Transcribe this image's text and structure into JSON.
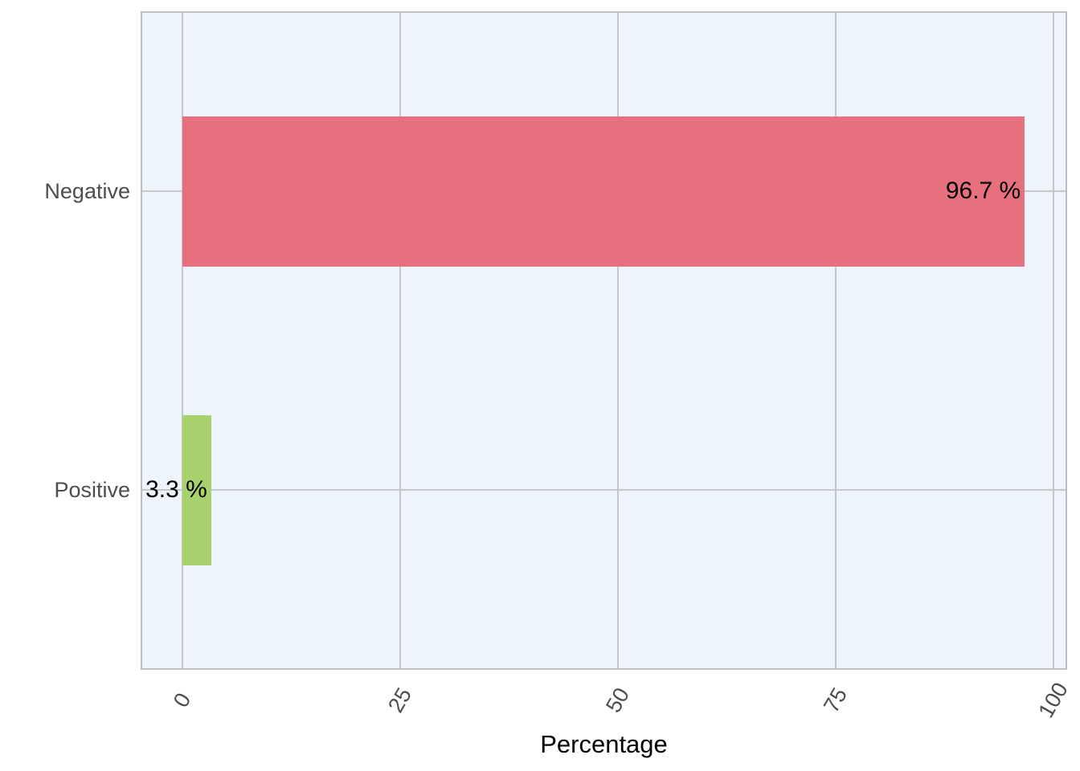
{
  "chart_data": {
    "type": "bar",
    "orientation": "horizontal",
    "title": "",
    "xlabel": "Percentage",
    "ylabel": "",
    "categories": [
      "Negative",
      "Positive"
    ],
    "values": [
      96.7,
      3.3
    ],
    "bar_labels": [
      "96.7 %",
      "3.3 %"
    ],
    "bar_colors": [
      "#E7707E",
      "#A8D26E"
    ],
    "x_ticks": [
      0,
      25,
      50,
      75,
      100
    ],
    "x_tick_labels": [
      "0",
      "25",
      "50",
      "75",
      "100"
    ],
    "xlim": [
      0,
      100
    ],
    "grid": true,
    "legend": "none",
    "x_tick_label_angle_deg": 60,
    "colors": {
      "panel_background": "#EEF4FC",
      "gridline": "#C5C7C9",
      "panel_border": "#BDBDBD",
      "axis_text": "#4D4D4D",
      "value_label_text": "#000000",
      "axis_title_text": "#000000",
      "figure_background": "#FFFFFF"
    }
  }
}
